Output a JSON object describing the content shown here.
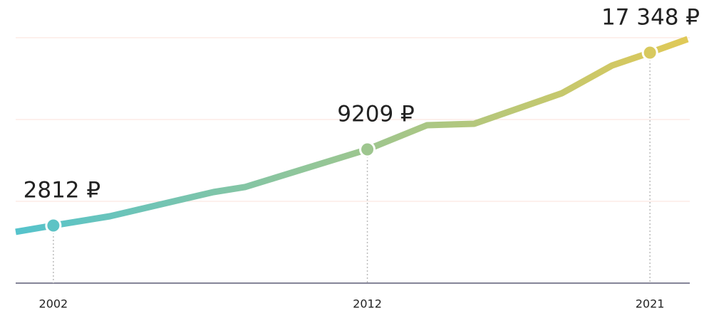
{
  "chart_data": {
    "type": "line",
    "x": [
      2000.8,
      2002,
      2003.8,
      2007.1,
      2008.1,
      2012,
      2013.9,
      2015.4,
      2018.2,
      2019.8,
      2021,
      2022.2
    ],
    "values": [
      2273,
      2812,
      3589,
      5623,
      6042,
      9209,
      11246,
      11366,
      13938,
      16271,
      17348,
      18484
    ],
    "value_labels": [
      null,
      "2812 ₽",
      null,
      null,
      null,
      "9209 ₽",
      null,
      null,
      null,
      null,
      "17 348 ₽",
      null
    ],
    "colors": [
      "#55c3cc",
      "#e0c957"
    ],
    "xlim": [
      2000.8,
      2022.2
    ],
    "xticks": [
      2002,
      2012,
      2021
    ],
    "ylim": [
      -2034,
      18603
    ],
    "yticks": [
      4845,
      11724,
      18603
    ],
    "grid": true
  }
}
